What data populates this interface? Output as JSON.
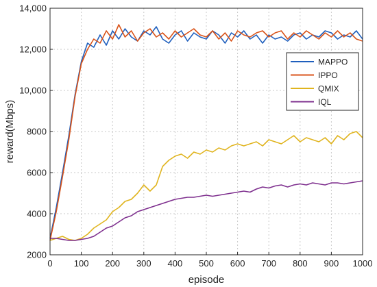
{
  "chart_data": {
    "type": "line",
    "title": "",
    "xlabel": "episode",
    "ylabel": "reward(Mbps)",
    "xlim": [
      0,
      1000
    ],
    "ylim": [
      2000,
      14000
    ],
    "x_ticks": [
      0,
      100,
      200,
      300,
      400,
      500,
      600,
      700,
      800,
      900,
      1000
    ],
    "x_tick_labels": [
      "0",
      "100",
      "200",
      "300",
      "400",
      "500",
      "600",
      "700",
      "800",
      "900",
      "1000"
    ],
    "y_ticks": [
      2000,
      4000,
      6000,
      8000,
      10000,
      12000,
      14000
    ],
    "y_tick_labels": [
      "2000",
      "4000",
      "6000",
      "8000",
      "10,000",
      "12,000",
      "14,000"
    ],
    "grid": true,
    "legend_position": "upper-right (inside plot)",
    "series": [
      {
        "name": "MAPPO",
        "color": "#1f5fbd",
        "x": [
          0,
          20,
          40,
          60,
          80,
          100,
          120,
          140,
          160,
          180,
          200,
          220,
          240,
          260,
          280,
          300,
          320,
          340,
          360,
          380,
          400,
          420,
          440,
          460,
          480,
          500,
          520,
          540,
          560,
          580,
          600,
          620,
          640,
          660,
          680,
          700,
          720,
          740,
          760,
          780,
          800,
          820,
          840,
          860,
          880,
          900,
          920,
          940,
          960,
          980,
          1000
        ],
        "y": [
          2800,
          4300,
          6000,
          7800,
          9800,
          11400,
          12300,
          12100,
          12700,
          12200,
          12900,
          12500,
          13000,
          12600,
          12400,
          12900,
          12700,
          13100,
          12500,
          12300,
          12700,
          12900,
          12400,
          12800,
          12600,
          12500,
          12900,
          12700,
          12300,
          12800,
          12600,
          12900,
          12500,
          12700,
          12300,
          12700,
          12500,
          12600,
          12400,
          12700,
          12800,
          12500,
          12700,
          12600,
          12900,
          12800,
          12500,
          12700,
          12600,
          12900,
          12500
        ]
      },
      {
        "name": "IPPO",
        "color": "#d95319",
        "x": [
          0,
          20,
          40,
          60,
          80,
          100,
          120,
          140,
          160,
          180,
          200,
          220,
          240,
          260,
          280,
          300,
          320,
          340,
          360,
          380,
          400,
          420,
          440,
          460,
          480,
          500,
          520,
          540,
          560,
          580,
          600,
          620,
          640,
          660,
          680,
          700,
          720,
          740,
          760,
          780,
          800,
          820,
          840,
          860,
          880,
          900,
          920,
          940,
          960,
          980,
          1000
        ],
        "y": [
          2700,
          4100,
          5800,
          7600,
          9700,
          11300,
          12000,
          12500,
          12300,
          12900,
          12500,
          13200,
          12600,
          12900,
          12400,
          12800,
          13000,
          12600,
          12800,
          12500,
          12900,
          12600,
          12800,
          13000,
          12700,
          12600,
          12900,
          12500,
          12800,
          12400,
          12900,
          12700,
          12600,
          12800,
          12900,
          12600,
          12800,
          12900,
          12500,
          12800,
          12600,
          12900,
          12700,
          12500,
          12800,
          12600,
          12900,
          12600,
          12800,
          12500,
          12400
        ]
      },
      {
        "name": "QMIX",
        "color": "#e0b41e",
        "x": [
          0,
          20,
          40,
          60,
          80,
          100,
          120,
          140,
          160,
          180,
          200,
          220,
          240,
          260,
          280,
          300,
          320,
          340,
          360,
          380,
          400,
          420,
          440,
          460,
          480,
          500,
          520,
          540,
          560,
          580,
          600,
          620,
          640,
          660,
          680,
          700,
          720,
          740,
          760,
          780,
          800,
          820,
          840,
          860,
          880,
          900,
          920,
          940,
          960,
          980,
          1000
        ],
        "y": [
          2700,
          2800,
          2900,
          2750,
          2700,
          2800,
          3000,
          3300,
          3500,
          3700,
          4100,
          4300,
          4600,
          4700,
          5000,
          5400,
          5100,
          5400,
          6300,
          6600,
          6800,
          6900,
          6700,
          7000,
          6900,
          7100,
          7000,
          7200,
          7100,
          7300,
          7400,
          7300,
          7400,
          7500,
          7300,
          7600,
          7500,
          7400,
          7600,
          7800,
          7500,
          7700,
          7600,
          7500,
          7700,
          7400,
          7800,
          7600,
          7900,
          8000,
          7700
        ]
      },
      {
        "name": "IQL",
        "color": "#7e2f8e",
        "x": [
          0,
          20,
          40,
          60,
          80,
          100,
          120,
          140,
          160,
          180,
          200,
          220,
          240,
          260,
          280,
          300,
          320,
          340,
          360,
          380,
          400,
          420,
          440,
          460,
          480,
          500,
          520,
          540,
          560,
          580,
          600,
          620,
          640,
          660,
          680,
          700,
          720,
          740,
          760,
          780,
          800,
          820,
          840,
          860,
          880,
          900,
          920,
          940,
          960,
          980,
          1000
        ],
        "y": [
          2800,
          2800,
          2750,
          2700,
          2700,
          2750,
          2800,
          2900,
          3100,
          3300,
          3400,
          3600,
          3800,
          3900,
          4100,
          4200,
          4300,
          4400,
          4500,
          4600,
          4700,
          4750,
          4800,
          4800,
          4850,
          4900,
          4850,
          4900,
          4950,
          5000,
          5050,
          5100,
          5050,
          5200,
          5300,
          5250,
          5350,
          5400,
          5300,
          5400,
          5450,
          5400,
          5500,
          5450,
          5400,
          5500,
          5500,
          5450,
          5500,
          5550,
          5600
        ]
      }
    ]
  }
}
